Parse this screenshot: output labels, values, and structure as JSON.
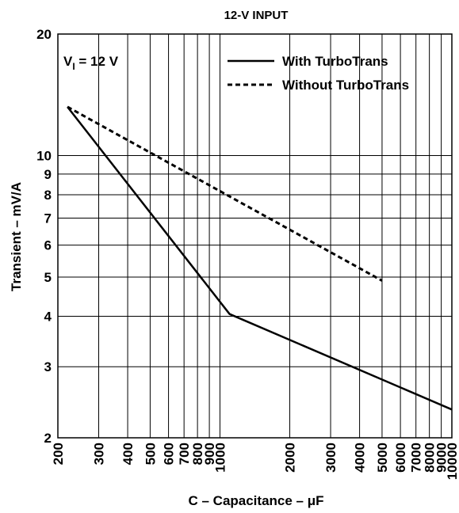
{
  "chart_data": {
    "type": "line",
    "title": "12-V INPUT",
    "annotation": {
      "main": "V",
      "sub": "I",
      "rest": " = 12 V"
    },
    "xlabel": "C – Capacitance – μF",
    "ylabel": "Transient – mV/A",
    "x_scale": "log",
    "y_scale": "log",
    "xlim": [
      200,
      10000
    ],
    "ylim": [
      2,
      20
    ],
    "grid": true,
    "legend_position": "top-right",
    "x_ticks": [
      200,
      300,
      400,
      500,
      600,
      700,
      800,
      900,
      1000,
      2000,
      3000,
      4000,
      5000,
      6000,
      7000,
      8000,
      9000,
      10000
    ],
    "x_tick_labels": [
      "200",
      "300",
      "400",
      "500",
      "600",
      "700",
      "800",
      "900",
      "1000",
      "2000",
      "3000",
      "4000",
      "5000",
      "6000",
      "7000",
      "8000",
      "9000",
      "10000"
    ],
    "y_ticks": [
      2,
      3,
      4,
      5,
      6,
      7,
      8,
      9,
      10,
      20
    ],
    "y_tick_labels": [
      "2",
      "3",
      "4",
      "5",
      "6",
      "7",
      "8",
      "9",
      "10",
      "20"
    ],
    "series": [
      {
        "name": "With TurboTrans",
        "style": "solid",
        "color": "#000000",
        "x": [
          220,
          1100,
          10000
        ],
        "y": [
          13.2,
          4.05,
          2.35
        ]
      },
      {
        "name": "Without TurboTrans",
        "style": "dashed",
        "color": "#000000",
        "x": [
          220,
          5000
        ],
        "y": [
          13.2,
          4.9
        ]
      }
    ]
  }
}
